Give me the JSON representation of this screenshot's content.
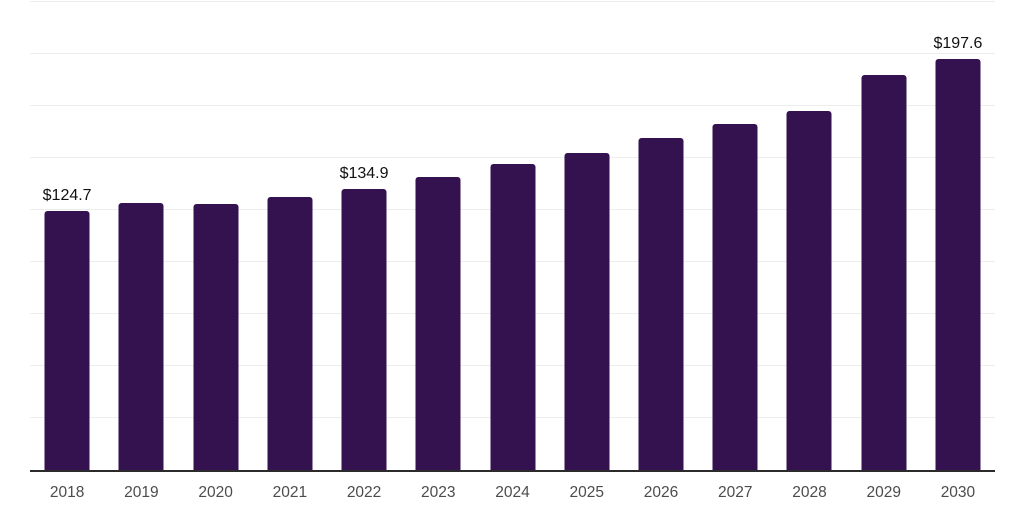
{
  "chart_data": {
    "type": "bar",
    "title": "",
    "xlabel": "",
    "ylabel": "",
    "categories": [
      "2018",
      "2019",
      "2020",
      "2021",
      "2022",
      "2023",
      "2024",
      "2025",
      "2026",
      "2027",
      "2028",
      "2029",
      "2030"
    ],
    "values": [
      124.7,
      128.6,
      127.9,
      131.1,
      134.9,
      140.7,
      147.1,
      152.5,
      159.5,
      166.5,
      172.7,
      190.0,
      197.6
    ],
    "value_labels": [
      "$124.7",
      "",
      "",
      "",
      "$134.9",
      "",
      "",
      "",
      "",
      "",
      "",
      "",
      "$197.6"
    ],
    "ylim": [
      0,
      225
    ],
    "grid_step": 25,
    "grid": true,
    "legend": false,
    "y_tick_labels_shown": false,
    "colors": {
      "bar": "#341250",
      "grid": "#ededed",
      "axis": "#2b2b2b",
      "x_label": "#4c4c4c",
      "value_label": "#111111",
      "background": "#ffffff"
    }
  }
}
